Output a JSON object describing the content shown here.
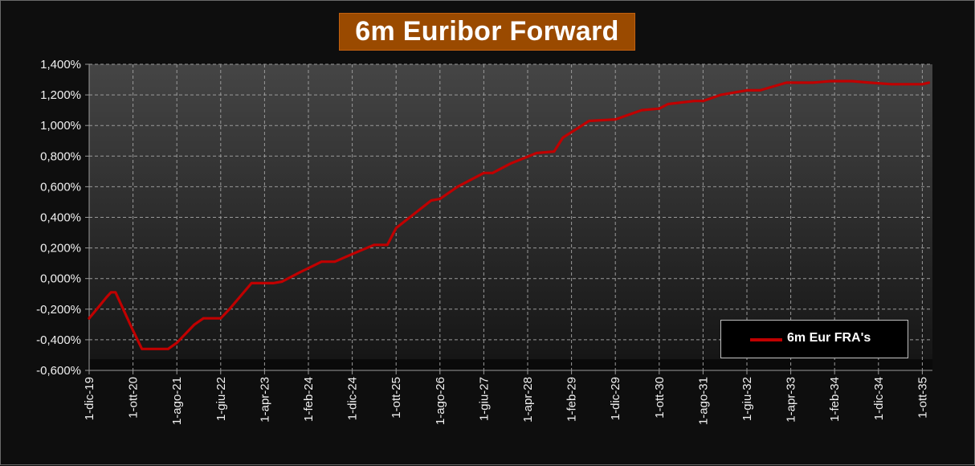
{
  "chart_data": {
    "type": "line",
    "title": "6m Euribor Forward",
    "xlabel": "",
    "ylabel": "",
    "ylim": [
      -0.6,
      1.4
    ],
    "y_tick_labels": [
      "1,400%",
      "1,200%",
      "1,000%",
      "0,800%",
      "0,600%",
      "0,400%",
      "0,200%",
      "0,000%",
      "-0,200%",
      "-0,400%",
      "-0,600%"
    ],
    "x_tick_labels": [
      "1-dic-19",
      "1-ott-20",
      "1-ago-21",
      "1-giu-22",
      "1-apr-23",
      "1-feb-24",
      "1-dic-24",
      "1-ott-25",
      "1-ago-26",
      "1-giu-27",
      "1-apr-28",
      "1-feb-29",
      "1-dic-29",
      "1-ott-30",
      "1-ago-31",
      "1-giu-32",
      "1-apr-33",
      "1-feb-34",
      "1-dic-34",
      "1-ott-35"
    ],
    "grid": true,
    "legend_position": "bottom-right",
    "series": [
      {
        "name": "6m Eur FRA's",
        "color": "#c00000",
        "x": [
          "2019-12-01",
          "2020-02-01",
          "2020-04-01",
          "2020-05-01",
          "2020-06-01",
          "2020-10-01",
          "2020-12-01",
          "2021-06-01",
          "2021-08-01",
          "2021-12-01",
          "2022-02-01",
          "2022-06-01",
          "2022-08-01",
          "2023-01-01",
          "2023-06-01",
          "2023-08-01",
          "2023-12-01",
          "2024-05-01",
          "2024-08-01",
          "2024-12-01",
          "2025-05-01",
          "2025-08-01",
          "2025-10-01",
          "2026-06-01",
          "2026-08-01",
          "2026-12-01",
          "2027-06-01",
          "2027-08-01",
          "2027-12-01",
          "2028-06-01",
          "2028-10-01",
          "2028-12-01",
          "2029-06-01",
          "2029-12-01",
          "2030-06-01",
          "2030-10-01",
          "2030-12-01",
          "2031-06-01",
          "2031-08-01",
          "2031-12-01",
          "2032-06-01",
          "2032-09-01",
          "2033-03-01",
          "2033-09-01",
          "2034-01-01",
          "2034-06-01",
          "2034-10-01",
          "2035-03-01",
          "2035-10-01",
          "2035-11-15"
        ],
        "values": [
          -0.26,
          -0.19,
          -0.12,
          -0.09,
          -0.09,
          -0.34,
          -0.46,
          -0.46,
          -0.42,
          -0.3,
          -0.26,
          -0.26,
          -0.2,
          -0.03,
          -0.03,
          -0.02,
          0.04,
          0.11,
          0.11,
          0.16,
          0.22,
          0.22,
          0.33,
          0.51,
          0.52,
          0.6,
          0.69,
          0.69,
          0.75,
          0.82,
          0.83,
          0.92,
          1.03,
          1.04,
          1.1,
          1.11,
          1.14,
          1.16,
          1.16,
          1.2,
          1.23,
          1.23,
          1.28,
          1.28,
          1.29,
          1.29,
          1.28,
          1.27,
          1.27,
          1.28
        ]
      }
    ]
  }
}
